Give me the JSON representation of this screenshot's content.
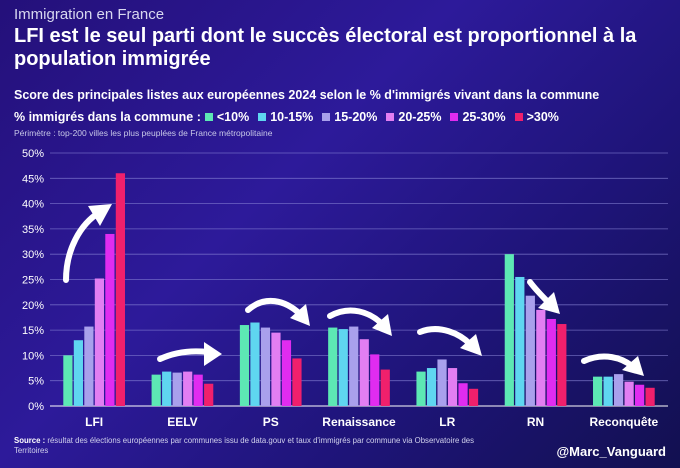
{
  "header": {
    "kicker": "Immigration en France",
    "title": "LFI est le seul parti dont le succès électoral est proportionnel à la population immigrée",
    "subtitle": "Score des principales listes aux européennes 2024 selon le % d'immigrés vivant dans la commune",
    "scope": "Périmètre : top-200 villes les plus peuplées de France métropolitaine"
  },
  "legend": {
    "title": "% immigrés dans la commune :",
    "items": [
      {
        "label": "<10%",
        "color": "#5de8b4"
      },
      {
        "label": "10-15%",
        "color": "#5fd6f0"
      },
      {
        "label": "15-20%",
        "color": "#a9a0ec"
      },
      {
        "label": "20-25%",
        "color": "#e27ef2"
      },
      {
        "label": "25-30%",
        "color": "#e02cf0"
      },
      {
        "label": ">30%",
        "color": "#f0206c"
      }
    ]
  },
  "chart_data": {
    "type": "bar",
    "title": "Score des principales listes aux européennes 2024 selon le % d'immigrés vivant dans la commune",
    "xlabel": "",
    "ylabel": "",
    "ylim": [
      0,
      50
    ],
    "yticks": [
      "0%",
      "5%",
      "10%",
      "15%",
      "20%",
      "25%",
      "30%",
      "35%",
      "40%",
      "45%",
      "50%"
    ],
    "grid": true,
    "legend_position": "top",
    "categories": [
      "LFI",
      "EELV",
      "PS",
      "Renaissance",
      "LR",
      "RN",
      "Reconquête"
    ],
    "series": [
      {
        "name": "<10%",
        "values": [
          10,
          6.2,
          16,
          15.5,
          6.8,
          30,
          5.8
        ]
      },
      {
        "name": "10-15%",
        "values": [
          13,
          6.8,
          16.5,
          15.2,
          7.5,
          25.5,
          5.8
        ]
      },
      {
        "name": "15-20%",
        "values": [
          15.7,
          6.6,
          15.5,
          15.7,
          9.2,
          21.8,
          6.3
        ]
      },
      {
        "name": "20-25%",
        "values": [
          25.2,
          6.8,
          14.5,
          13.2,
          7.5,
          19,
          4.8
        ]
      },
      {
        "name": "25-30%",
        "values": [
          34,
          6.2,
          13,
          10.2,
          4.5,
          17.2,
          4.2
        ]
      },
      {
        "name": ">30%",
        "values": [
          46,
          4.4,
          9.4,
          7.2,
          3.4,
          16.2,
          3.6
        ]
      }
    ]
  },
  "footer": {
    "source_label": "Source :",
    "source_text": "résultat des élections européennes par communes issu de data.gouv et taux d'immigrés par commune via Observatoire des Territoires",
    "handle": "@Marc_Vanguard"
  }
}
